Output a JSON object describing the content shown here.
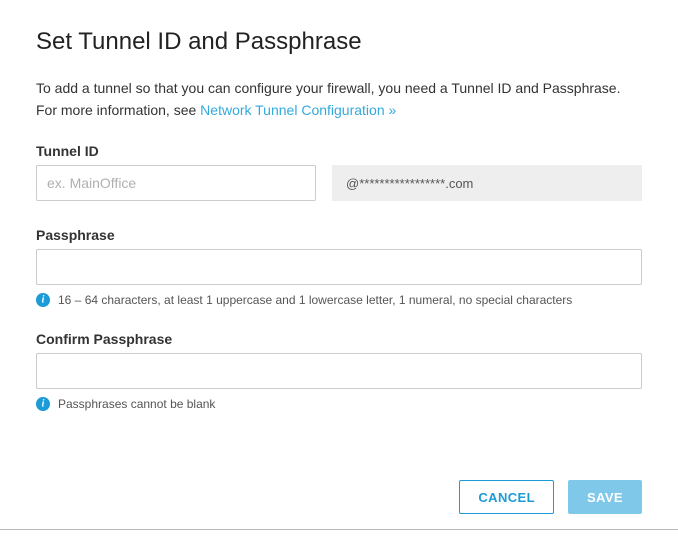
{
  "title": "Set Tunnel ID and Passphrase",
  "intro": {
    "text_before_link": "To add a tunnel so that you can configure your firewall, you need a Tunnel ID and Passphrase. For more information, see ",
    "link_text": "Network Tunnel Configuration »"
  },
  "tunnel": {
    "label": "Tunnel ID",
    "placeholder": "ex. MainOffice",
    "value": "",
    "domain_text": "@*****************.com"
  },
  "passphrase": {
    "label": "Passphrase",
    "value": "",
    "hint": "16 – 64 characters, at least 1 uppercase and 1 lowercase letter, 1 numeral, no special characters"
  },
  "confirm": {
    "label": "Confirm Passphrase",
    "value": "",
    "hint": "Passphrases cannot be blank"
  },
  "buttons": {
    "cancel": "CANCEL",
    "save": "SAVE"
  },
  "colors": {
    "link": "#33aadd",
    "info_icon": "#1c9bd7",
    "cancel_border": "#1c9bd7",
    "save_bg": "#7fc8ea",
    "input_border": "#cccccc",
    "domain_bg": "#eeeeee"
  }
}
